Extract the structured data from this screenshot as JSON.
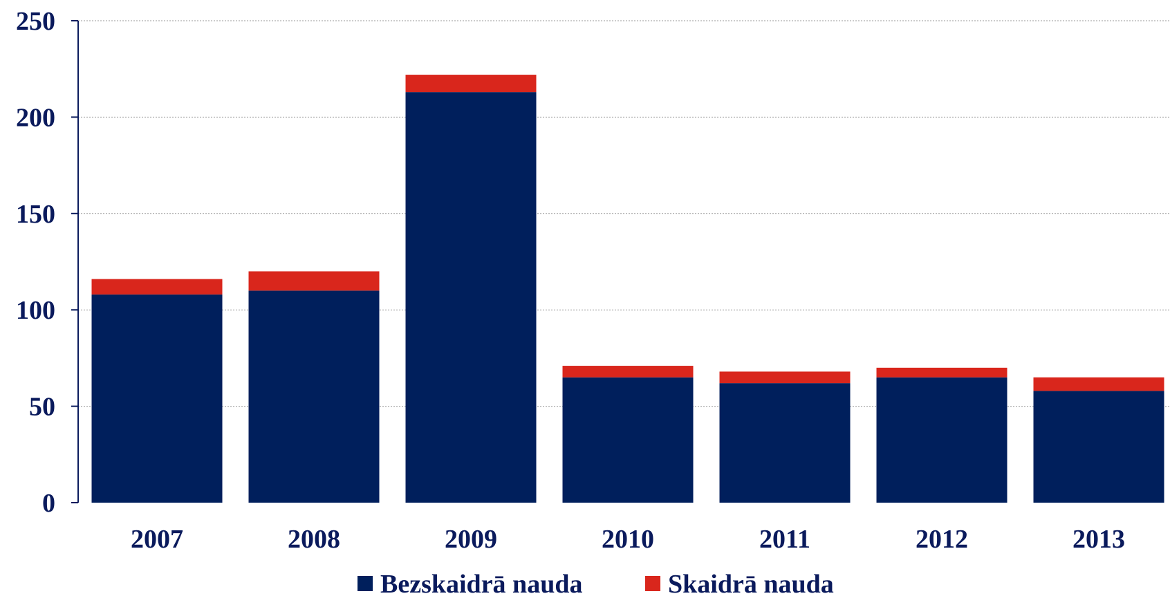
{
  "chart_data": {
    "type": "bar",
    "stacked": true,
    "categories": [
      "2007",
      "2008",
      "2009",
      "2010",
      "2011",
      "2012",
      "2013"
    ],
    "series": [
      {
        "name": "Bezskaidrā nauda",
        "color": "#001f5c",
        "values": [
          108,
          110,
          213,
          65,
          62,
          65,
          58
        ]
      },
      {
        "name": "Skaidrā nauda",
        "color": "#d9261c",
        "values": [
          8,
          10,
          9,
          6,
          6,
          5,
          7
        ]
      }
    ],
    "title": "",
    "xlabel": "",
    "ylabel": "",
    "ylim": [
      0,
      250
    ],
    "yticks": [
      0,
      50,
      100,
      150,
      200,
      250
    ],
    "grid": true,
    "legend_position": "bottom"
  }
}
